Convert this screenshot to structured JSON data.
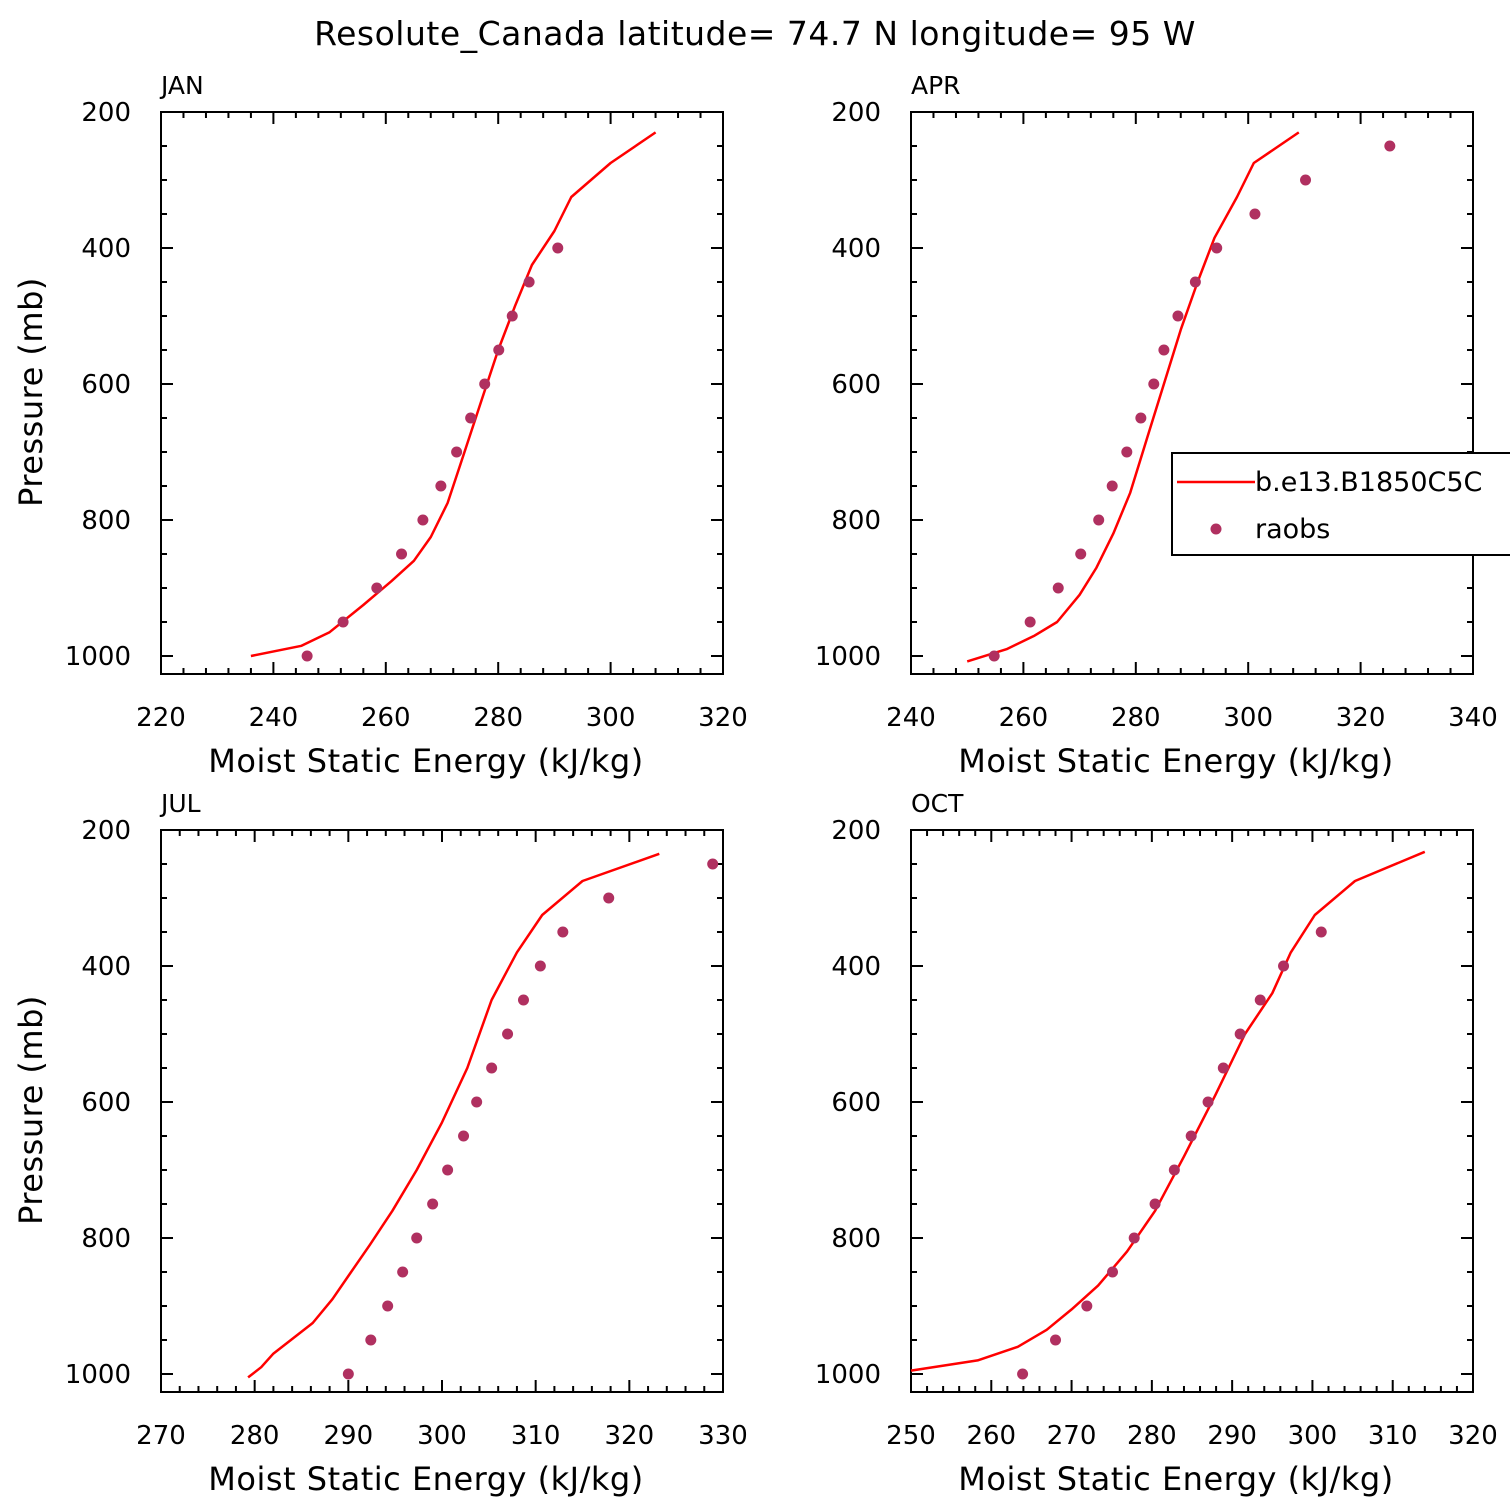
{
  "figure_title": "Resolute_Canada  latitude= 74.7 N longitude= 95 W",
  "colors": {
    "model_line": "#ff0000",
    "obs_marker": "#b03060",
    "axes": "#000000"
  },
  "legend": {
    "entries": [
      {
        "label": "b.e13.B1850C5C",
        "style": "line"
      },
      {
        "label": "raobs",
        "style": "marker"
      }
    ]
  },
  "chart_data": [
    {
      "type": "line",
      "title": "JAN",
      "xlabel": "Moist Static Energy (kJ/kg)",
      "ylabel": "Pressure (mb)",
      "xlim": [
        220,
        320
      ],
      "ylim": [
        1000,
        200
      ],
      "xticks": [
        220,
        240,
        260,
        280,
        300,
        320
      ],
      "yticks": [
        200,
        400,
        600,
        800,
        1000
      ],
      "series": [
        {
          "name": "b.e13.B1850C5C",
          "kind": "line",
          "x": [
            236,
            245,
            250,
            256,
            261,
            265,
            268,
            271,
            274,
            277,
            280,
            283,
            286,
            290,
            293,
            300,
            308
          ],
          "y": [
            1000,
            985,
            965,
            925,
            890,
            860,
            825,
            775,
            700,
            625,
            550,
            485,
            425,
            375,
            325,
            275,
            230
          ]
        },
        {
          "name": "raobs",
          "kind": "marker",
          "x": [
            246,
            252.4,
            258.4,
            262.8,
            266.6,
            269.8,
            272.6,
            275.1,
            277.6,
            280.1,
            282.5,
            285.5,
            290.6
          ],
          "y": [
            1000,
            950,
            900,
            850,
            800,
            750,
            700,
            650,
            600,
            550,
            500,
            450,
            400
          ]
        }
      ]
    },
    {
      "type": "line",
      "title": "APR",
      "xlabel": "Moist Static Energy (kJ/kg)",
      "ylabel": "",
      "xlim": [
        240,
        340
      ],
      "ylim": [
        1000,
        200
      ],
      "xticks": [
        240,
        260,
        280,
        300,
        320,
        340
      ],
      "yticks": [
        200,
        400,
        600,
        800,
        1000
      ],
      "legend_position": "right",
      "series": [
        {
          "name": "b.e13.B1850C5C",
          "kind": "line",
          "x": [
            250,
            257,
            262,
            266,
            270,
            273,
            276,
            279,
            282,
            285,
            288,
            291,
            294,
            298,
            301,
            309
          ],
          "y": [
            1008,
            990,
            970,
            950,
            910,
            870,
            820,
            760,
            680,
            600,
            520,
            450,
            385,
            325,
            275,
            230
          ]
        },
        {
          "name": "raobs",
          "kind": "marker",
          "x": [
            254.8,
            261.2,
            266.2,
            270.2,
            273.4,
            275.8,
            278.4,
            280.9,
            283.2,
            285,
            287.5,
            290.6,
            294.4,
            301.2,
            310.2,
            325.2
          ],
          "y": [
            1000,
            950,
            900,
            850,
            800,
            750,
            700,
            650,
            600,
            550,
            500,
            450,
            400,
            350,
            300,
            250
          ]
        }
      ]
    },
    {
      "type": "line",
      "title": "JUL",
      "xlabel": "Moist Static Energy (kJ/kg)",
      "ylabel": "Pressure (mb)",
      "xlim": [
        270,
        330
      ],
      "ylim": [
        1000,
        200
      ],
      "xticks": [
        270,
        280,
        290,
        300,
        310,
        320,
        330
      ],
      "yticks": [
        200,
        400,
        600,
        800,
        1000
      ],
      "series": [
        {
          "name": "b.e13.B1850C5C",
          "kind": "line",
          "x": [
            279.3,
            280.7,
            282,
            286.2,
            288.3,
            290.3,
            292.3,
            294.7,
            297.3,
            300,
            302.7,
            305.3,
            308,
            310.7,
            315,
            323.2
          ],
          "y": [
            1005,
            990,
            970,
            925,
            890,
            850,
            810,
            760,
            700,
            630,
            550,
            450,
            380,
            325,
            275,
            235
          ]
        },
        {
          "name": "raobs",
          "kind": "marker",
          "x": [
            290,
            292.4,
            294.2,
            295.8,
            297.3,
            299,
            300.6,
            302.3,
            303.7,
            305.3,
            307,
            308.7,
            310.5,
            312.9,
            317.8,
            328.9
          ],
          "y": [
            1000,
            950,
            900,
            850,
            800,
            750,
            700,
            650,
            600,
            550,
            500,
            450,
            400,
            350,
            300,
            250
          ]
        }
      ]
    },
    {
      "type": "line",
      "title": "OCT",
      "xlabel": "Moist Static Energy (kJ/kg)",
      "ylabel": "",
      "xlim": [
        250,
        320
      ],
      "ylim": [
        1000,
        200
      ],
      "xticks": [
        250,
        260,
        270,
        280,
        290,
        300,
        310,
        320
      ],
      "yticks": [
        200,
        400,
        600,
        800,
        1000
      ],
      "series": [
        {
          "name": "b.e13.B1850C5C",
          "kind": "line",
          "x": [
            250,
            258.3,
            263.3,
            266.9,
            270,
            273.3,
            276.9,
            280.4,
            284,
            287.9,
            291.6,
            295,
            297.3,
            300.3,
            305.3,
            314
          ],
          "y": [
            995,
            980,
            960,
            935,
            905,
            870,
            820,
            760,
            680,
            590,
            500,
            440,
            380,
            325,
            275,
            232
          ]
        },
        {
          "name": "raobs",
          "kind": "marker",
          "x": [
            263.9,
            268,
            271.9,
            275.1,
            277.8,
            280.4,
            282.8,
            284.9,
            287,
            288.9,
            291,
            293.5,
            296.4,
            301.1
          ],
          "y": [
            1000,
            950,
            900,
            850,
            800,
            750,
            700,
            650,
            600,
            550,
            500,
            450,
            400,
            350
          ]
        }
      ]
    }
  ]
}
